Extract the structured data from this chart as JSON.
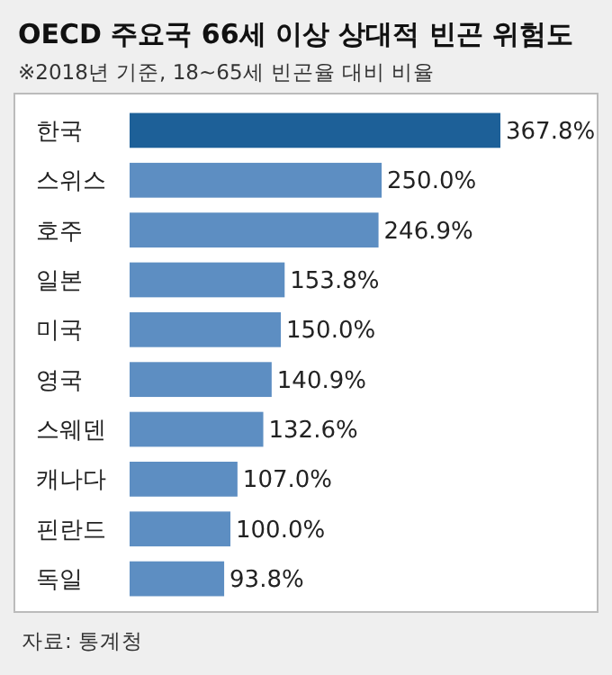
{
  "chart_data": {
    "type": "bar",
    "orientation": "horizontal",
    "title": "OECD 주요국 66세 이상 상대적 빈곤 위험도",
    "subtitle": "※2018년 기준, 18~65세 빈곤율 대비 비율",
    "categories": [
      "한국",
      "스위스",
      "호주",
      "일본",
      "미국",
      "영국",
      "스웨덴",
      "캐나다",
      "핀란드",
      "독일"
    ],
    "values": [
      367.8,
      250.0,
      246.9,
      153.8,
      150.0,
      140.9,
      132.6,
      107.0,
      100.0,
      93.8
    ],
    "value_labels": [
      "367.8%",
      "250.0%",
      "246.9%",
      "153.8%",
      "150.0%",
      "140.9%",
      "132.6%",
      "107.0%",
      "100.0%",
      "93.8%"
    ],
    "colors": [
      "#1d6098",
      "#5d8ec2",
      "#5d8ec2",
      "#5d8ec2",
      "#5d8ec2",
      "#5d8ec2",
      "#5d8ec2",
      "#5d8ec2",
      "#5d8ec2",
      "#5d8ec2"
    ],
    "annotations": [
      "자료: 통계청"
    ]
  }
}
